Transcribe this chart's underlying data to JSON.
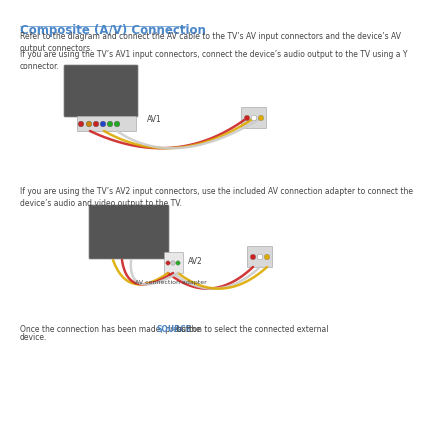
{
  "title": "Composite (A/V) Connection",
  "title_color": "#4a86c8",
  "title_fontsize": 8.5,
  "body_fontsize": 5.5,
  "body_color": "#444444",
  "highlight_color": "#4a86c8",
  "background_color": "#ffffff",
  "para1": "Refer to the diagram and connect the AV cable to the TV’s AV input connectors and the device’s AV\noutput connectors.",
  "para2": "If you are using the TV’s AV1 input connectors, connect the device’s audio output to the TV using a Y\nconnector.",
  "label_av1": "AV1",
  "para3": "If you are using the TV’s AV2 input connectors, use the included AV connection adapter to connect the\ndevice’s audio and video output to the TV.",
  "label_av2": "AV2",
  "label_adapter": "AV connection adapter",
  "para4_prefix": "Once the connection has been made, press the ",
  "para4_highlight": "SOURCE",
  "para4_suffix": " button to select the connected external",
  "para4_line2": "device."
}
